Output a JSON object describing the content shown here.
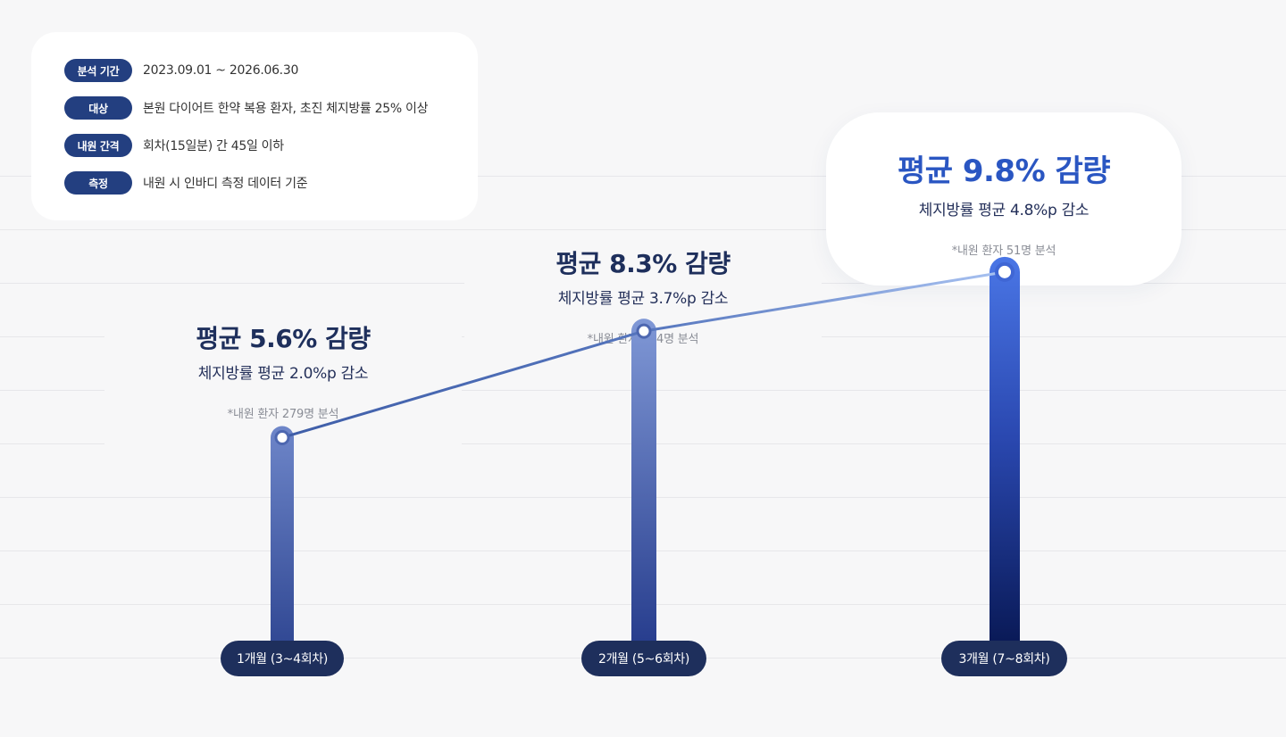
{
  "info": {
    "rows": [
      {
        "badge": "분석 기간",
        "text": "2023.09.01 ~ 2026.06.30"
      },
      {
        "badge": "대상",
        "text": "본원 다이어트 한약 복용 환자, 초진 체지방률 25% 이상"
      },
      {
        "badge": "내원 간격",
        "text": "회차(15일분) 간 45일 이하"
      },
      {
        "badge": "측정",
        "text": "내원 시 인바디 측정 데이터 기준"
      }
    ]
  },
  "callouts": [
    {
      "headline": "평균 5.6% 감량",
      "sub": "체지방률 평균 2.0%p 감소",
      "note": "*내원 환자 279명 분석"
    },
    {
      "headline": "평균 8.3% 감량",
      "sub": "체지방률 평균 3.7%p 감소",
      "note": "*내원 환자 164명 분석"
    },
    {
      "headline": "평균 9.8% 감량",
      "sub": "체지방률 평균 4.8%p 감소",
      "note": "*내원 환자 51명 분석"
    }
  ],
  "chart_data": {
    "type": "bar",
    "categories": [
      "1개월 (3~4회차)",
      "2개월 (5~6회차)",
      "3개월 (7~8회차)"
    ],
    "values": [
      5.6,
      8.3,
      9.8
    ],
    "series": [
      {
        "values": [
          5.6,
          8.3,
          9.8
        ]
      }
    ],
    "title": "",
    "xlabel": "",
    "ylabel": "",
    "grid": true,
    "colors": {
      "bar_top": "#6f86c8",
      "bar_bottom": "#0b1a52",
      "line": "#4f6fb5",
      "label_bg": "#1e2f5c",
      "highlight": "#2a56c2"
    }
  }
}
